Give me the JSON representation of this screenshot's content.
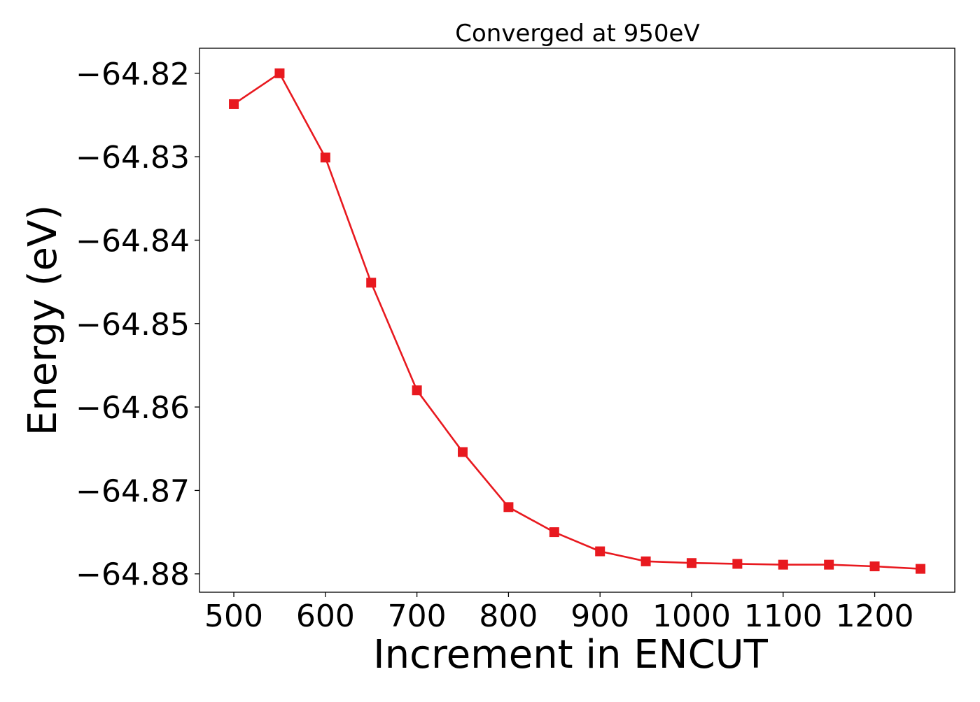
{
  "chart_data": {
    "type": "line",
    "title": "Converged at 950eV",
    "xlabel": "Increment in ENCUT",
    "ylabel": "Energy (eV)",
    "xlim": [
      462.5,
      1287.5
    ],
    "ylim": [
      -64.8822,
      -64.817
    ],
    "xticks": [
      500,
      600,
      700,
      800,
      900,
      1000,
      1100,
      1200
    ],
    "xtick_labels": [
      "500",
      "600",
      "700",
      "800",
      "900",
      "1000",
      "1100",
      "1200"
    ],
    "yticks": [
      -64.82,
      -64.83,
      -64.84,
      -64.85,
      -64.86,
      -64.87,
      -64.88
    ],
    "ytick_labels": [
      "−64.82",
      "−64.83",
      "−64.84",
      "−64.85",
      "−64.86",
      "−64.87",
      "−64.88"
    ],
    "grid": false,
    "legend": "none",
    "series": [
      {
        "color": "#e8191f",
        "marker": "square",
        "x": [
          500,
          550,
          600,
          650,
          700,
          750,
          800,
          850,
          900,
          950,
          1000,
          1050,
          1100,
          1150,
          1200,
          1250
        ],
        "values": [
          -64.8237,
          -64.82,
          -64.8301,
          -64.8451,
          -64.858,
          -64.8654,
          -64.872,
          -64.875,
          -64.8773,
          -64.8785,
          -64.8787,
          -64.8788,
          -64.8789,
          -64.8789,
          -64.8791,
          -64.8794
        ]
      }
    ]
  }
}
